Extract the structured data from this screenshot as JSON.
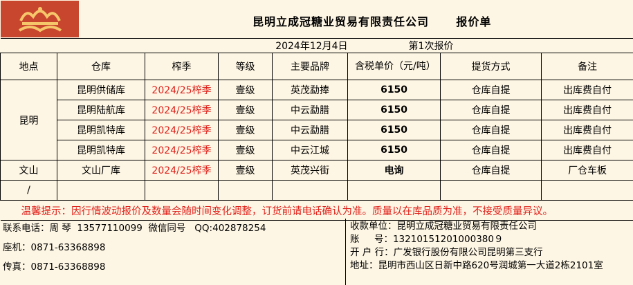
{
  "header": {
    "title": "昆明立成冠糖业贸易有限责任公司      报价单",
    "logo_icon": "crown-logo"
  },
  "date": "2024年12月4日",
  "round": "第1次报价",
  "columns": [
    "地点",
    "仓库",
    "榨季",
    "等级",
    "主要品牌",
    "含税单价（元/吨）",
    "提货方式",
    "备注"
  ],
  "rows": [
    {
      "location": "昆明",
      "warehouse": "昆明供储库",
      "season": "2024/25榨季",
      "grade": "壹级",
      "brand": "英茂勐捧",
      "price": "6150",
      "delivery": "仓库自提",
      "note": "出库费自付"
    },
    {
      "warehouse": "昆明陆航库",
      "season": "2024/25榨季",
      "grade": "壹级",
      "brand": "中云勐腊",
      "price": "6150",
      "delivery": "仓库自提",
      "note": "出库费自付"
    },
    {
      "warehouse": "昆明凯特库",
      "season": "2024/25榨季",
      "grade": "壹级",
      "brand": "中云勐腊",
      "price": "6150",
      "delivery": "仓库自提",
      "note": "出库费自付"
    },
    {
      "warehouse": "昆明凯特库",
      "season": "2024/25榨季",
      "grade": "壹级",
      "brand": "中云江城",
      "price": "6150",
      "delivery": "仓库自提",
      "note": "出库费自付"
    },
    {
      "location": "文山",
      "warehouse": "文山厂库",
      "season": "2024/25榨季",
      "grade": "壹级",
      "brand": "英茂兴街",
      "price": "电询",
      "delivery": "仓库自提",
      "note": "厂仓车板"
    },
    {
      "location": "/"
    }
  ],
  "notice": "温馨提示：因行情波动报价及数量会随时间变化调整，订货前请电话确认为准。质量以在库品质为准，不接受质量异议。",
  "contact": {
    "phone": "联系电话：周 琴  13577110099  微信同号   QQ:402878254",
    "landline": "座机：0871-63368898",
    "fax": "传真：0871-63368898"
  },
  "payee": {
    "name": "收款单位：昆明立成冠糖业贸易有限责任公司",
    "account": "账     号：13210151201000380９",
    "bank": "开 户 行：广发银行股份有限公司昆明第三支行",
    "address": "地址：昆明市西山区日新中路620号润城第一大道2栋2101室"
  },
  "colors": {
    "red_text": "#e0201a",
    "background": "#fef6e4",
    "logo_bg": "#c8452e"
  }
}
